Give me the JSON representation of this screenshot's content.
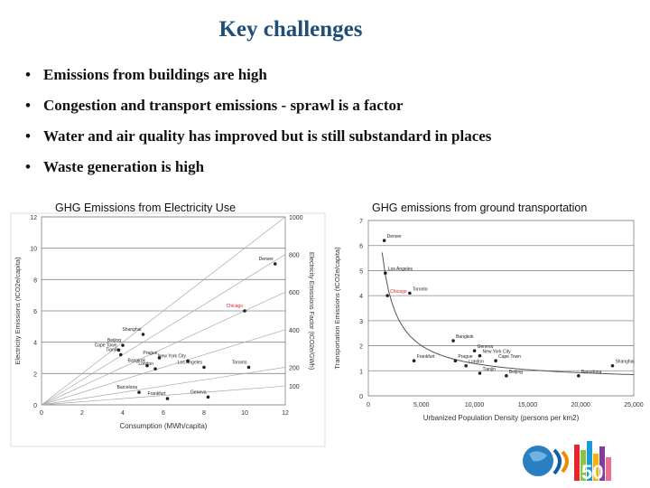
{
  "slide": {
    "title": "Key challenges",
    "bullets": [
      "Emissions from buildings are high",
      "Congestion and transport emissions - sprawl is a factor",
      "Water and air quality has improved but is still substandard in places",
      "Waste generation is high"
    ]
  },
  "colors": {
    "title": "#1f4e79",
    "point": "#222222",
    "highlight": "#e02020"
  },
  "chart_data": [
    {
      "type": "scatter",
      "title": "GHG Emissions from Electricity Use",
      "xlabel": "Consumption (MWh/capita)",
      "ylabel": "Electricity Emissions (tCO2e/capita)",
      "y2label": "Electricity Emissions Factor (tCO2e/GWh)",
      "xlim": [
        0,
        12
      ],
      "ylim": [
        0,
        12
      ],
      "xticks": [
        "0",
        "2",
        "4",
        "6",
        "8",
        "10",
        "12"
      ],
      "yticks": [
        "0",
        "2",
        "4",
        "6",
        "8",
        "10",
        "12"
      ],
      "factor_lines": [
        {
          "label": "1000",
          "factor": 1000
        },
        {
          "label": "800",
          "factor": 800
        },
        {
          "label": "600",
          "factor": 600
        },
        {
          "label": "400",
          "factor": 400
        },
        {
          "label": "200",
          "factor": 200
        },
        {
          "label": "100",
          "factor": 100
        }
      ],
      "points": [
        {
          "label": "Denver",
          "x": 11.5,
          "y": 9.0,
          "highlight": false
        },
        {
          "label": "Chicago",
          "x": 10.0,
          "y": 6.0,
          "highlight": true
        },
        {
          "label": "Shanghai",
          "x": 5.0,
          "y": 4.5,
          "highlight": false
        },
        {
          "label": "Beijing",
          "x": 4.0,
          "y": 3.8,
          "highlight": false
        },
        {
          "label": "Cape Town",
          "x": 3.8,
          "y": 3.5,
          "highlight": false
        },
        {
          "label": "Tianjin",
          "x": 3.9,
          "y": 3.2,
          "highlight": false
        },
        {
          "label": "Prague",
          "x": 5.8,
          "y": 3.0,
          "highlight": false
        },
        {
          "label": "New York City",
          "x": 7.2,
          "y": 2.8,
          "highlight": false
        },
        {
          "label": "Bangkok",
          "x": 5.2,
          "y": 2.5,
          "highlight": false
        },
        {
          "label": "London",
          "x": 5.6,
          "y": 2.3,
          "highlight": false
        },
        {
          "label": "Los Angeles",
          "x": 8.0,
          "y": 2.4,
          "highlight": false
        },
        {
          "label": "Toronto",
          "x": 10.2,
          "y": 2.4,
          "highlight": false
        },
        {
          "label": "Barcelona",
          "x": 4.8,
          "y": 0.8,
          "highlight": false
        },
        {
          "label": "Geneva",
          "x": 8.2,
          "y": 0.5,
          "highlight": false
        },
        {
          "label": "Frankfurt",
          "x": 6.2,
          "y": 0.4,
          "highlight": false
        }
      ]
    },
    {
      "type": "scatter",
      "title": "GHG emissions from ground transportation",
      "xlabel": "Urbanized Population Density (persons per km2)",
      "ylabel": "Transportation Emissions (tCO2e/capita)",
      "xlim": [
        0,
        25000
      ],
      "ylim": [
        0,
        7
      ],
      "xticks": [
        "0",
        "5,000",
        "10,000",
        "15,000",
        "20,000",
        "25,000"
      ],
      "yticks": [
        "0",
        "1",
        "2",
        "3",
        "4",
        "5",
        "6",
        "7"
      ],
      "points": [
        {
          "label": "Denver",
          "x": 1500,
          "y": 6.2,
          "highlight": false
        },
        {
          "label": "Los Angeles",
          "x": 1600,
          "y": 4.9,
          "highlight": false
        },
        {
          "label": "Toronto",
          "x": 3900,
          "y": 4.1,
          "highlight": false
        },
        {
          "label": "Chicago",
          "x": 1800,
          "y": 4.0,
          "highlight": true
        },
        {
          "label": "Bangkok",
          "x": 8000,
          "y": 2.2,
          "highlight": false
        },
        {
          "label": "Geneva",
          "x": 10000,
          "y": 1.8,
          "highlight": false
        },
        {
          "label": "New York City",
          "x": 10500,
          "y": 1.6,
          "highlight": false
        },
        {
          "label": "Cape Town",
          "x": 12000,
          "y": 1.4,
          "highlight": false
        },
        {
          "label": "Frankfurt",
          "x": 4300,
          "y": 1.4,
          "highlight": false
        },
        {
          "label": "Prague",
          "x": 8200,
          "y": 1.4,
          "highlight": false
        },
        {
          "label": "London",
          "x": 9200,
          "y": 1.2,
          "highlight": false
        },
        {
          "label": "Tianjin",
          "x": 10500,
          "y": 0.9,
          "highlight": false
        },
        {
          "label": "Beijing",
          "x": 13000,
          "y": 0.8,
          "highlight": false
        },
        {
          "label": "Shanghai",
          "x": 23000,
          "y": 1.2,
          "highlight": false
        },
        {
          "label": "Barcelona",
          "x": 19800,
          "y": 0.8,
          "highlight": false
        }
      ]
    }
  ]
}
